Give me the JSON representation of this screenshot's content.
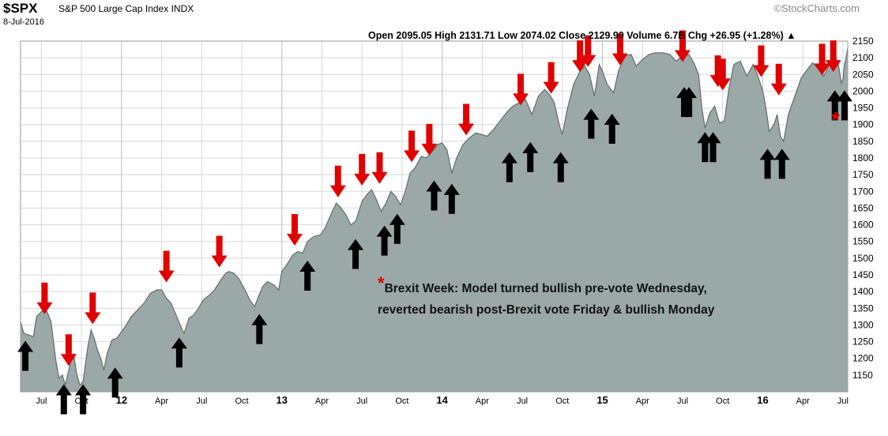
{
  "header": {
    "ticker": "$SPX",
    "name": "S&P 500 Large Cap Index",
    "exchange": "INDX",
    "date": "8-Jul-2016",
    "brand": "©StockCharts.com",
    "ohlc": "Open 2095.05  High 2131.71  Low 2074.02  Close 2129.90  Volume 6.7B  Chg +26.95 (+1.28%) ▲"
  },
  "annotation": {
    "star": "*",
    "line1": "Brexit Week: Model turned bullish pre-vote Wednesday,",
    "line2": "reverted bearish post-Brexit vote Friday & bullish Monday"
  },
  "colors": {
    "area": "#9aa8a8",
    "area_line": "#5f6e6e",
    "bear_arrow": "#e00000",
    "bull_arrow": "#000000",
    "grid": "#d8d8d8"
  },
  "chart_data": {
    "type": "area",
    "title": "S&P 500 Large Cap Index",
    "ylim": [
      1100,
      2150
    ],
    "y_ticks": [
      1150,
      1200,
      1250,
      1300,
      1350,
      1400,
      1450,
      1500,
      1550,
      1600,
      1650,
      1700,
      1750,
      1800,
      1850,
      1900,
      1950,
      2000,
      2050,
      2100,
      2150
    ],
    "x_ticks": [
      {
        "label": "Jul",
        "t": 2011.5
      },
      {
        "label": "Oct",
        "t": 2011.75
      },
      {
        "label": "12",
        "t": 2012.0
      },
      {
        "label": "Apr",
        "t": 2012.25
      },
      {
        "label": "Jul",
        "t": 2012.5
      },
      {
        "label": "Oct",
        "t": 2012.75
      },
      {
        "label": "13",
        "t": 2013.0
      },
      {
        "label": "Apr",
        "t": 2013.25
      },
      {
        "label": "Jul",
        "t": 2013.5
      },
      {
        "label": "Oct",
        "t": 2013.75
      },
      {
        "label": "14",
        "t": 2014.0
      },
      {
        "label": "Apr",
        "t": 2014.25
      },
      {
        "label": "Jul",
        "t": 2014.5
      },
      {
        "label": "Oct",
        "t": 2014.75
      },
      {
        "label": "15",
        "t": 2015.0
      },
      {
        "label": "Apr",
        "t": 2015.25
      },
      {
        "label": "Jul",
        "t": 2015.5
      },
      {
        "label": "Oct",
        "t": 2015.75
      },
      {
        "label": "16",
        "t": 2016.0
      },
      {
        "label": "Apr",
        "t": 2016.25
      },
      {
        "label": "Jul",
        "t": 2016.5
      }
    ],
    "bold_x_ticks": [
      "12",
      "13",
      "14",
      "15",
      "16"
    ],
    "series": [
      {
        "points": [
          [
            2011.37,
            1310
          ],
          [
            2011.39,
            1275
          ],
          [
            2011.42,
            1270
          ],
          [
            2011.45,
            1265
          ],
          [
            2011.47,
            1325
          ],
          [
            2011.5,
            1340
          ],
          [
            2011.53,
            1345
          ],
          [
            2011.56,
            1310
          ],
          [
            2011.59,
            1195
          ],
          [
            2011.61,
            1140
          ],
          [
            2011.63,
            1150
          ],
          [
            2011.65,
            1120
          ],
          [
            2011.68,
            1185
          ],
          [
            2011.7,
            1215
          ],
          [
            2011.72,
            1155
          ],
          [
            2011.74,
            1120
          ],
          [
            2011.76,
            1130
          ],
          [
            2011.79,
            1235
          ],
          [
            2011.81,
            1285
          ],
          [
            2011.83,
            1260
          ],
          [
            2011.85,
            1225
          ],
          [
            2011.87,
            1200
          ],
          [
            2011.89,
            1165
          ],
          [
            2011.91,
            1215
          ],
          [
            2011.94,
            1255
          ],
          [
            2011.97,
            1260
          ],
          [
            2012.0,
            1280
          ],
          [
            2012.03,
            1300
          ],
          [
            2012.06,
            1325
          ],
          [
            2012.1,
            1345
          ],
          [
            2012.14,
            1365
          ],
          [
            2012.18,
            1395
          ],
          [
            2012.22,
            1405
          ],
          [
            2012.25,
            1405
          ],
          [
            2012.28,
            1380
          ],
          [
            2012.31,
            1365
          ],
          [
            2012.34,
            1330
          ],
          [
            2012.37,
            1295
          ],
          [
            2012.39,
            1275
          ],
          [
            2012.42,
            1320
          ],
          [
            2012.45,
            1330
          ],
          [
            2012.48,
            1350
          ],
          [
            2012.51,
            1375
          ],
          [
            2012.55,
            1390
          ],
          [
            2012.58,
            1405
          ],
          [
            2012.62,
            1435
          ],
          [
            2012.65,
            1455
          ],
          [
            2012.67,
            1460
          ],
          [
            2012.7,
            1455
          ],
          [
            2012.73,
            1440
          ],
          [
            2012.77,
            1405
          ],
          [
            2012.8,
            1375
          ],
          [
            2012.83,
            1355
          ],
          [
            2012.85,
            1380
          ],
          [
            2012.88,
            1415
          ],
          [
            2012.91,
            1430
          ],
          [
            2012.95,
            1420
          ],
          [
            2012.98,
            1405
          ],
          [
            2013.0,
            1460
          ],
          [
            2013.03,
            1480
          ],
          [
            2013.07,
            1510
          ],
          [
            2013.1,
            1520
          ],
          [
            2013.13,
            1515
          ],
          [
            2013.16,
            1550
          ],
          [
            2013.2,
            1565
          ],
          [
            2013.24,
            1570
          ],
          [
            2013.27,
            1590
          ],
          [
            2013.31,
            1635
          ],
          [
            2013.34,
            1665
          ],
          [
            2013.37,
            1650
          ],
          [
            2013.4,
            1630
          ],
          [
            2013.43,
            1600
          ],
          [
            2013.46,
            1610
          ],
          [
            2013.5,
            1670
          ],
          [
            2013.53,
            1690
          ],
          [
            2013.56,
            1705
          ],
          [
            2013.59,
            1675
          ],
          [
            2013.62,
            1640
          ],
          [
            2013.65,
            1665
          ],
          [
            2013.68,
            1700
          ],
          [
            2013.71,
            1685
          ],
          [
            2013.74,
            1660
          ],
          [
            2013.77,
            1700
          ],
          [
            2013.8,
            1755
          ],
          [
            2013.83,
            1770
          ],
          [
            2013.87,
            1805
          ],
          [
            2013.9,
            1800
          ],
          [
            2013.94,
            1820
          ],
          [
            2013.97,
            1840
          ],
          [
            2014.0,
            1845
          ],
          [
            2014.03,
            1825
          ],
          [
            2014.06,
            1755
          ],
          [
            2014.09,
            1800
          ],
          [
            2014.13,
            1840
          ],
          [
            2014.17,
            1860
          ],
          [
            2014.21,
            1875
          ],
          [
            2014.25,
            1870
          ],
          [
            2014.28,
            1865
          ],
          [
            2014.32,
            1885
          ],
          [
            2014.36,
            1910
          ],
          [
            2014.4,
            1935
          ],
          [
            2014.44,
            1955
          ],
          [
            2014.48,
            1965
          ],
          [
            2014.52,
            1975
          ],
          [
            2014.56,
            1930
          ],
          [
            2014.6,
            1985
          ],
          [
            2014.64,
            2005
          ],
          [
            2014.67,
            1990
          ],
          [
            2014.7,
            1965
          ],
          [
            2014.73,
            1900
          ],
          [
            2014.75,
            1870
          ],
          [
            2014.78,
            1945
          ],
          [
            2014.82,
            2020
          ],
          [
            2014.86,
            2060
          ],
          [
            2014.89,
            2075
          ],
          [
            2014.92,
            2050
          ],
          [
            2014.95,
            1985
          ],
          [
            2014.98,
            2080
          ],
          [
            2015.0,
            2060
          ],
          [
            2015.03,
            2020
          ],
          [
            2015.07,
            1995
          ],
          [
            2015.1,
            2060
          ],
          [
            2015.14,
            2105
          ],
          [
            2015.18,
            2110
          ],
          [
            2015.21,
            2075
          ],
          [
            2015.25,
            2095
          ],
          [
            2015.29,
            2110
          ],
          [
            2015.33,
            2115
          ],
          [
            2015.38,
            2115
          ],
          [
            2015.42,
            2110
          ],
          [
            2015.46,
            2090
          ],
          [
            2015.5,
            2105
          ],
          [
            2015.54,
            2110
          ],
          [
            2015.57,
            2085
          ],
          [
            2015.6,
            2050
          ],
          [
            2015.62,
            1950
          ],
          [
            2015.64,
            1890
          ],
          [
            2015.67,
            1935
          ],
          [
            2015.7,
            1955
          ],
          [
            2015.73,
            1905
          ],
          [
            2015.76,
            1910
          ],
          [
            2015.79,
            2010
          ],
          [
            2015.82,
            2080
          ],
          [
            2015.86,
            2090
          ],
          [
            2015.9,
            2045
          ],
          [
            2015.94,
            2080
          ],
          [
            2015.97,
            2045
          ],
          [
            2016.0,
            2000
          ],
          [
            2016.02,
            1950
          ],
          [
            2016.04,
            1880
          ],
          [
            2016.07,
            1900
          ],
          [
            2016.09,
            1930
          ],
          [
            2016.11,
            1865
          ],
          [
            2016.13,
            1850
          ],
          [
            2016.16,
            1930
          ],
          [
            2016.2,
            1985
          ],
          [
            2016.24,
            2040
          ],
          [
            2016.27,
            2060
          ],
          [
            2016.31,
            2085
          ],
          [
            2016.35,
            2065
          ],
          [
            2016.38,
            2045
          ],
          [
            2016.42,
            2085
          ],
          [
            2016.45,
            2100
          ],
          [
            2016.47,
            2085
          ],
          [
            2016.49,
            2025
          ],
          [
            2016.5,
            2035
          ],
          [
            2016.51,
            2080
          ],
          [
            2016.52,
            2100
          ],
          [
            2016.53,
            2129.9
          ]
        ]
      }
    ],
    "signals": {
      "sell": [
        [
          2011.52,
          1375
        ],
        [
          2011.67,
          1220
        ],
        [
          2011.82,
          1345
        ],
        [
          2012.28,
          1470
        ],
        [
          2012.61,
          1515
        ],
        [
          2013.08,
          1580
        ],
        [
          2013.35,
          1725
        ],
        [
          2013.5,
          1760
        ],
        [
          2013.61,
          1765
        ],
        [
          2013.81,
          1830
        ],
        [
          2013.92,
          1850
        ],
        [
          2014.15,
          1910
        ],
        [
          2014.49,
          2000
        ],
        [
          2014.68,
          2035
        ],
        [
          2014.86,
          2100
        ],
        [
          2014.91,
          2115
        ],
        [
          2015.11,
          2120
        ],
        [
          2015.5,
          2130
        ],
        [
          2015.72,
          2055
        ],
        [
          2015.75,
          2045
        ],
        [
          2015.99,
          2085
        ],
        [
          2016.1,
          2030
        ],
        [
          2016.37,
          2090
        ],
        [
          2016.44,
          2100
        ]
      ],
      "buy": [
        [
          2011.4,
          1210
        ],
        [
          2011.64,
          1080
        ],
        [
          2011.76,
          1080
        ],
        [
          2011.96,
          1130
        ],
        [
          2012.36,
          1220
        ],
        [
          2012.86,
          1290
        ],
        [
          2013.16,
          1450
        ],
        [
          2013.46,
          1515
        ],
        [
          2013.64,
          1555
        ],
        [
          2013.72,
          1590
        ],
        [
          2013.95,
          1690
        ],
        [
          2014.06,
          1680
        ],
        [
          2014.42,
          1775
        ],
        [
          2014.55,
          1805
        ],
        [
          2014.74,
          1775
        ],
        [
          2014.93,
          1905
        ],
        [
          2015.06,
          1890
        ],
        [
          2015.51,
          1970
        ],
        [
          2015.54,
          1970
        ],
        [
          2015.64,
          1835
        ],
        [
          2015.69,
          1835
        ],
        [
          2016.03,
          1785
        ],
        [
          2016.12,
          1785
        ],
        [
          2016.45,
          1960
        ],
        [
          2016.51,
          1960
        ]
      ],
      "brexit_star": [
        2016.48,
        1880
      ]
    }
  }
}
